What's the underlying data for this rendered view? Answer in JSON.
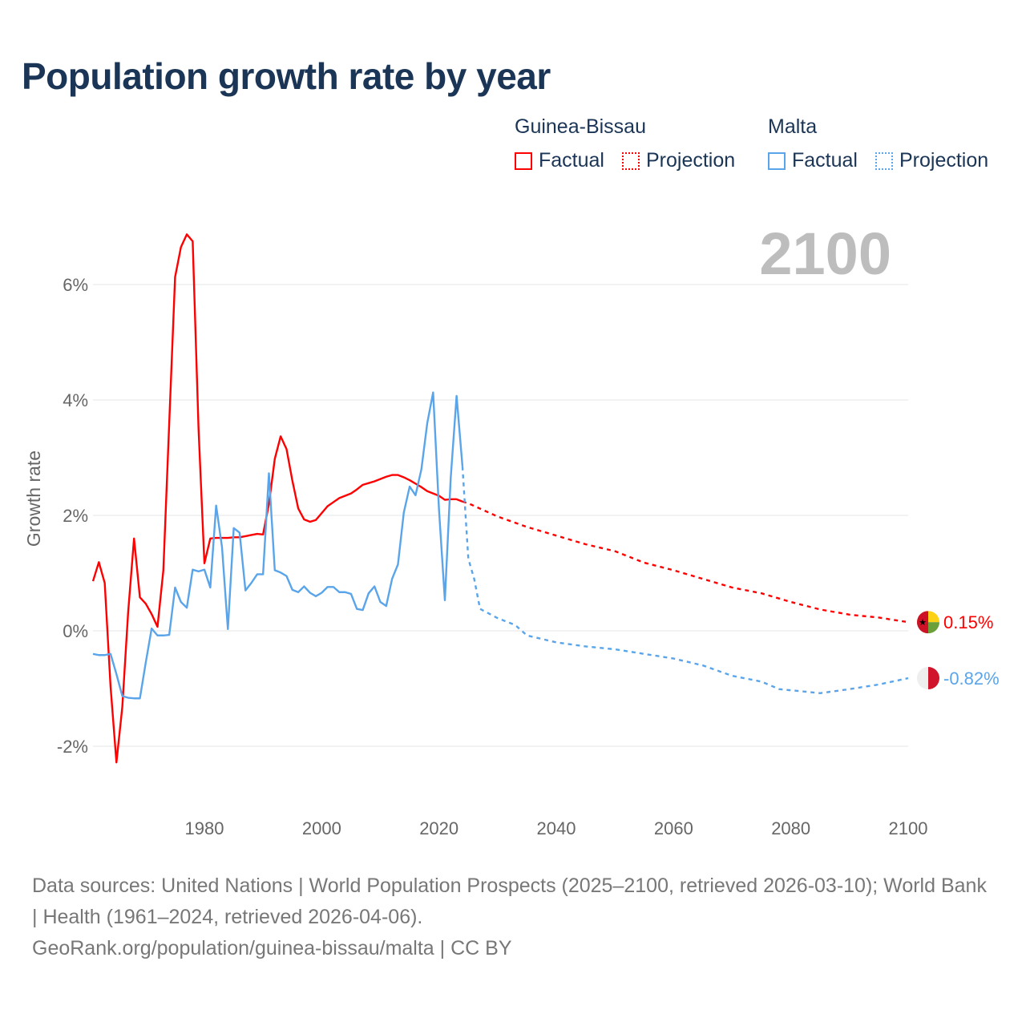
{
  "title": "Population growth rate by year",
  "legend": {
    "groups": [
      {
        "name": "Guinea-Bissau",
        "factual": "Factual",
        "projection": "Projection",
        "color": "#ff0000"
      },
      {
        "name": "Malta",
        "factual": "Factual",
        "projection": "Projection",
        "color": "#5aa5ea"
      }
    ]
  },
  "year_label": "2100",
  "footer": {
    "line1": "Data sources: United Nations | World Population Prospects (2025–2100, retrieved 2026-03-10); World Bank | Health (1961–2024, retrieved 2026-04-06).",
    "line2": "GeoRank.org/population/guinea-bissau/malta | CC BY"
  },
  "chart_data": {
    "type": "line",
    "title": "Population growth rate by year",
    "ylabel": "Growth rate",
    "xlabel": "",
    "xlim": [
      1961,
      2100
    ],
    "ylim": [
      -3,
      7
    ],
    "x_ticks": [
      1980,
      2000,
      2020,
      2040,
      2060,
      2080,
      2100
    ],
    "y_ticks": [
      {
        "v": -2,
        "label": "-2%"
      },
      {
        "v": 0,
        "label": "0%"
      },
      {
        "v": 2,
        "label": "2%"
      },
      {
        "v": 4,
        "label": "4%"
      },
      {
        "v": 6,
        "label": "6%"
      }
    ],
    "grid": true,
    "series": [
      {
        "name": "Guinea-Bissau",
        "color": "#ff0000",
        "end_label": "0.15%",
        "factual": {
          "start": 1961,
          "values": [
            0.86,
            1.19,
            0.83,
            -0.97,
            -2.28,
            -1.32,
            0.33,
            1.6,
            0.58,
            0.47,
            0.29,
            0.07,
            1.05,
            3.6,
            6.13,
            6.65,
            6.87,
            6.75,
            3.5,
            1.17,
            1.6,
            1.61,
            1.61,
            1.61,
            1.62,
            1.62,
            1.64,
            1.66,
            1.68,
            1.67,
            2.2,
            2.98,
            3.37,
            3.15,
            2.6,
            2.12,
            1.93,
            1.89,
            1.92,
            2.04,
            2.16,
            2.23,
            2.3,
            2.34,
            2.38,
            2.45,
            2.53,
            2.56,
            2.59,
            2.63,
            2.67,
            2.7,
            2.7,
            2.66,
            2.61,
            2.55,
            2.49,
            2.42,
            2.38,
            2.34,
            2.27,
            2.28,
            2.28,
            2.24
          ]
        },
        "projection": {
          "x": [
            2024,
            2025,
            2030,
            2035,
            2040,
            2045,
            2050,
            2055,
            2060,
            2065,
            2070,
            2075,
            2080,
            2085,
            2090,
            2095,
            2100
          ],
          "values": [
            2.24,
            2.21,
            1.98,
            1.8,
            1.65,
            1.5,
            1.38,
            1.18,
            1.05,
            0.9,
            0.75,
            0.65,
            0.5,
            0.37,
            0.28,
            0.23,
            0.15
          ]
        }
      },
      {
        "name": "Malta",
        "color": "#5aa5ea",
        "end_label": "-0.82%",
        "factual": {
          "start": 1961,
          "values": [
            -0.4,
            -0.42,
            -0.42,
            -0.4,
            -0.75,
            -1.13,
            -1.16,
            -1.17,
            -1.17,
            -0.55,
            0.04,
            -0.08,
            -0.08,
            -0.07,
            0.75,
            0.5,
            0.4,
            1.06,
            1.03,
            1.06,
            0.75,
            2.17,
            1.45,
            0.03,
            1.78,
            1.7,
            0.7,
            0.83,
            0.98,
            0.98,
            2.73,
            1.05,
            1.01,
            0.95,
            0.71,
            0.67,
            0.77,
            0.66,
            0.6,
            0.66,
            0.76,
            0.76,
            0.67,
            0.67,
            0.64,
            0.38,
            0.36,
            0.65,
            0.77,
            0.5,
            0.43,
            0.9,
            1.15,
            2.05,
            2.5,
            2.35,
            2.8,
            3.6,
            4.13,
            2.1,
            0.53,
            2.65,
            4.07,
            2.85
          ]
        },
        "projection": {
          "x": [
            2024,
            2025,
            2026,
            2027,
            2030,
            2033,
            2035,
            2040,
            2045,
            2050,
            2055,
            2060,
            2065,
            2070,
            2075,
            2078,
            2085,
            2090,
            2095,
            2100
          ],
          "values": [
            2.85,
            1.25,
            0.9,
            0.38,
            0.22,
            0.1,
            -0.08,
            -0.2,
            -0.27,
            -0.32,
            -0.4,
            -0.48,
            -0.6,
            -0.78,
            -0.88,
            -1.01,
            -1.08,
            -1.01,
            -0.93,
            -0.82
          ]
        }
      }
    ]
  }
}
